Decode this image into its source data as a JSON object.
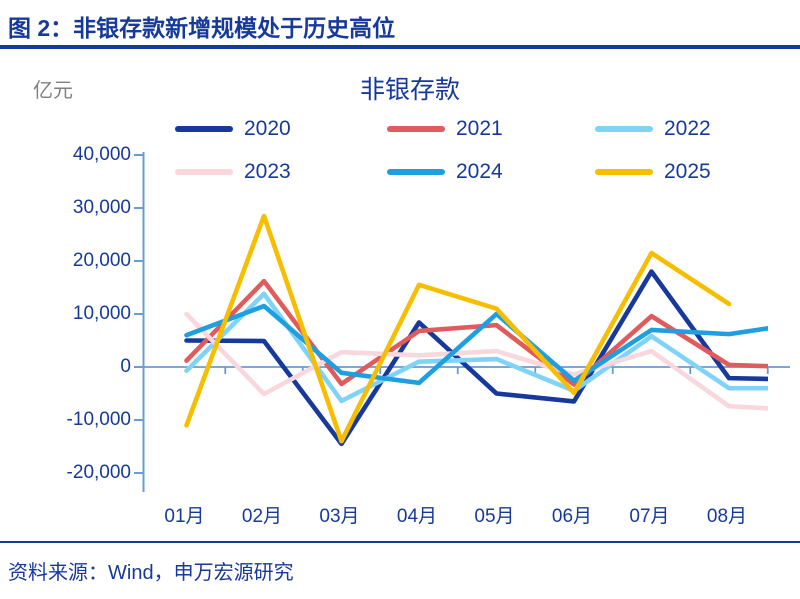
{
  "header": {
    "title": "图 2：非银存款新增规模处于历史高位"
  },
  "footer": {
    "source": "资料来源：Wind，申万宏源研究"
  },
  "colors": {
    "accent_text": "#16399b",
    "axis": "#699bd3",
    "title_rule": "#16399b"
  },
  "chart_data": {
    "type": "line",
    "title": "非银存款",
    "unit_label": "亿元",
    "x_categories": [
      "01月",
      "02月",
      "03月",
      "04月",
      "05月",
      "06月",
      "07月",
      "08月"
    ],
    "y_tick_labels": [
      "40,000",
      "30,000",
      "20,000",
      "10,000",
      "0",
      "-10,000",
      "-20,000"
    ],
    "y_tick_values": [
      40000,
      30000,
      20000,
      10000,
      0,
      -10000,
      -20000
    ],
    "ylim": [
      -20000,
      40000
    ],
    "grid": "none",
    "legend_position": "top, two rows of three",
    "series": [
      {
        "name": "2020",
        "color": "#16399b",
        "values": [
          5000,
          4900,
          -14500,
          8400,
          -5000,
          -6500,
          18000,
          -2100
        ],
        "sep_partial": -2400
      },
      {
        "name": "2021",
        "color": "#e05c5c",
        "values": [
          1200,
          16200,
          -3200,
          6800,
          7900,
          -3300,
          9600,
          400
        ],
        "sep_partial": -100
      },
      {
        "name": "2022",
        "color": "#7ed3f7",
        "values": [
          -700,
          13800,
          -6400,
          1000,
          1500,
          -4500,
          5800,
          -4000
        ],
        "sep_partial": -4000
      },
      {
        "name": "2023",
        "color": "#f9d7dc",
        "values": [
          10000,
          -5100,
          2800,
          2200,
          3000,
          -1400,
          3000,
          -7400
        ],
        "sep_partial": -8200
      },
      {
        "name": "2024",
        "color": "#1d9fe0",
        "values": [
          6000,
          11500,
          -1100,
          -3000,
          10000,
          -2600,
          7000,
          6200
        ],
        "sep_partial": 8400
      },
      {
        "name": "2025",
        "color": "#f7be00",
        "values": [
          -11000,
          28500,
          -14000,
          15500,
          11000,
          -4900,
          21500,
          11900
        ],
        "sep_partial": null
      }
    ]
  }
}
